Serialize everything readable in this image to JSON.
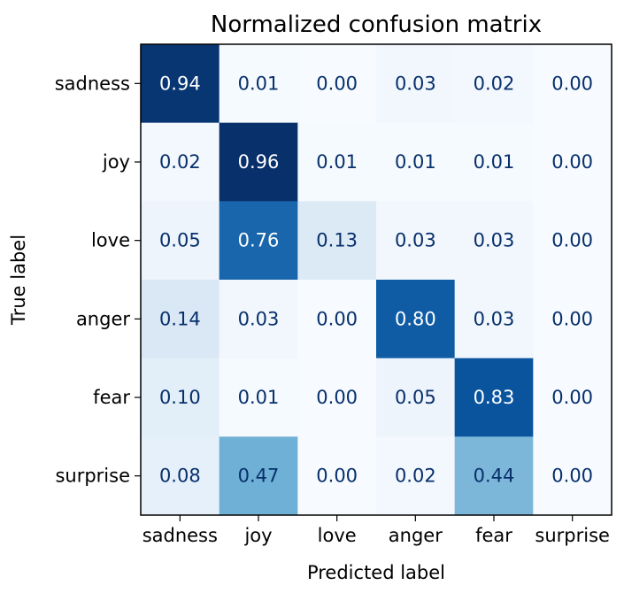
{
  "chart_data": {
    "type": "heatmap",
    "title": "Normalized confusion matrix",
    "xlabel": "Predicted label",
    "ylabel": "True label",
    "x_categories": [
      "sadness",
      "joy",
      "love",
      "anger",
      "fear",
      "surprise"
    ],
    "y_categories": [
      "sadness",
      "joy",
      "love",
      "anger",
      "fear",
      "surprise"
    ],
    "values": [
      [
        0.94,
        0.01,
        0.0,
        0.03,
        0.02,
        0.0
      ],
      [
        0.02,
        0.96,
        0.01,
        0.01,
        0.01,
        0.0
      ],
      [
        0.05,
        0.76,
        0.13,
        0.03,
        0.03,
        0.0
      ],
      [
        0.14,
        0.03,
        0.0,
        0.8,
        0.03,
        0.0
      ],
      [
        0.1,
        0.01,
        0.0,
        0.05,
        0.83,
        0.0
      ],
      [
        0.08,
        0.47,
        0.0,
        0.02,
        0.44,
        0.0
      ]
    ],
    "cell_labels": [
      [
        "0.94",
        "0.01",
        "0.00",
        "0.03",
        "0.02",
        "0.00"
      ],
      [
        "0.02",
        "0.96",
        "0.01",
        "0.01",
        "0.01",
        "0.00"
      ],
      [
        "0.05",
        "0.76",
        "0.13",
        "0.03",
        "0.03",
        "0.00"
      ],
      [
        "0.14",
        "0.03",
        "0.00",
        "0.80",
        "0.03",
        "0.00"
      ],
      [
        "0.10",
        "0.01",
        "0.00",
        "0.05",
        "0.83",
        "0.00"
      ],
      [
        "0.08",
        "0.47",
        "0.00",
        "0.02",
        "0.44",
        "0.00"
      ]
    ],
    "colormap": "Blues",
    "colormap_stops": [
      "#f7fbff",
      "#deebf7",
      "#c6dbef",
      "#9ecae1",
      "#6baed6",
      "#4292c6",
      "#2171b5",
      "#08519c",
      "#08306b"
    ],
    "text_color_light": "#ffffff",
    "text_color_dark": "#08306b",
    "grid": false
  }
}
